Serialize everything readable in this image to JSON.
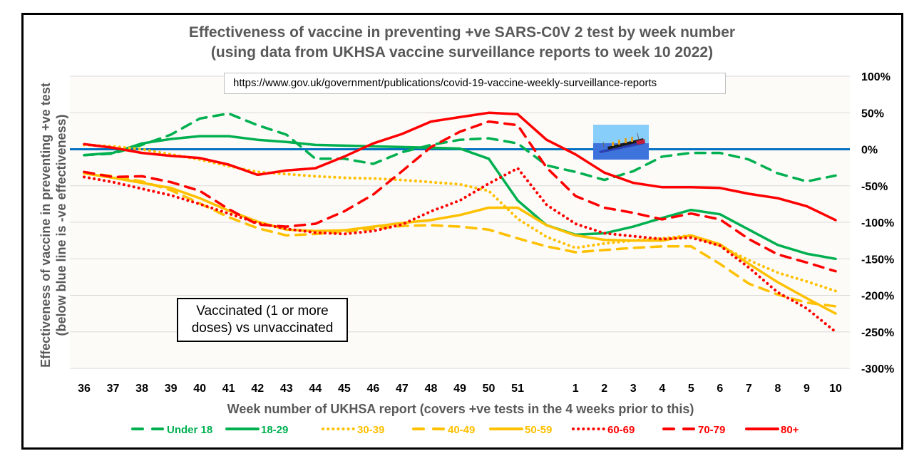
{
  "chart_data": {
    "type": "line",
    "title": "Effectiveness of vaccine in preventing +ve SARS-C0V 2 test by week number",
    "subtitle": "(using data from UKHSA vaccine surveillance reports to week 10 2022)",
    "xlabel": "Week number of UKHSA report (covers +ve tests in the 4 weeks prior to this)",
    "ylabel": "Effectiveness of vaccine in preventing +ve test",
    "ylabel2": "(below blue line is -ve effectiveness)",
    "source_url": "https://www.gov.uk/government/publications/covid-19-vaccine-weekly-surveillance-reports",
    "annotation": "Vaccinated (1 or more doses) vs unvaccinated",
    "annotation_lines": [
      "Vaccinated (1 or more",
      "doses) vs unvaccinated"
    ],
    "categories": [
      "36",
      "37",
      "38",
      "39",
      "40",
      "41",
      "42",
      "43",
      "44",
      "45",
      "46",
      "47",
      "48",
      "49",
      "50",
      "51",
      "",
      "1",
      "2",
      "3",
      "4",
      "5",
      "6",
      "7",
      "8",
      "9",
      "10"
    ],
    "ylim": [
      -300,
      100
    ],
    "yticks": [
      100,
      50,
      0,
      -50,
      -100,
      -150,
      -200,
      -250,
      -300
    ],
    "ytick_labels": [
      "100%",
      "50%",
      "0%",
      "-50%",
      "-100%",
      "-150%",
      "-200%",
      "-250%",
      "-300%"
    ],
    "y_axis_side": "right",
    "grid": true,
    "reference_line": {
      "value": 0,
      "color": "#0070C0"
    },
    "legend_position": "bottom",
    "series": [
      {
        "name": "Under 18",
        "color": "#00B050",
        "style": "dashed",
        "values": [
          -8,
          -6,
          6,
          20,
          42,
          49,
          33,
          20,
          -13,
          -13,
          -20,
          -4,
          6,
          13,
          15,
          8,
          -22,
          -31,
          -42,
          -30,
          -10,
          -5,
          -5,
          -14,
          -33,
          -44,
          -36
        ]
      },
      {
        "name": "18-29",
        "color": "#00B050",
        "style": "solid",
        "values": [
          -8,
          -5,
          8,
          14,
          18,
          18,
          13,
          10,
          6,
          5,
          4,
          3,
          2,
          1,
          -13,
          -70,
          -104,
          -117,
          -115,
          -106,
          -94,
          -83,
          -89,
          -110,
          -131,
          -143,
          -150
        ]
      },
      {
        "name": "30-39",
        "color": "#FFC000",
        "style": "dotted",
        "values": [
          6,
          4,
          0,
          -7,
          -14,
          -23,
          -31,
          -34,
          -37,
          -39,
          -40,
          -42,
          -45,
          -48,
          -57,
          -95,
          -120,
          -135,
          -129,
          -125,
          -122,
          -118,
          -132,
          -152,
          -169,
          -181,
          -194
        ]
      },
      {
        "name": "40-49",
        "color": "#FFC000",
        "style": "dashed",
        "values": [
          -32,
          -37,
          -44,
          -56,
          -74,
          -93,
          -108,
          -118,
          -116,
          -113,
          -109,
          -105,
          -104,
          -106,
          -110,
          -122,
          -133,
          -141,
          -138,
          -135,
          -133,
          -133,
          -157,
          -184,
          -199,
          -210,
          -215
        ]
      },
      {
        "name": "50-59",
        "color": "#FFC000",
        "style": "solid",
        "values": [
          -33,
          -39,
          -46,
          -53,
          -67,
          -84,
          -99,
          -110,
          -112,
          -111,
          -106,
          -101,
          -97,
          -90,
          -80,
          -80,
          -104,
          -118,
          -124,
          -125,
          -125,
          -118,
          -130,
          -157,
          -182,
          -204,
          -225
        ]
      },
      {
        "name": "60-69",
        "color": "#FF0000",
        "style": "dotted",
        "values": [
          -38,
          -45,
          -54,
          -63,
          -75,
          -88,
          -101,
          -109,
          -114,
          -116,
          -112,
          -103,
          -85,
          -70,
          -47,
          -26,
          -76,
          -102,
          -115,
          -119,
          -123,
          -121,
          -132,
          -162,
          -196,
          -218,
          -250
        ]
      },
      {
        "name": "70-79",
        "color": "#FF0000",
        "style": "dashed",
        "values": [
          -31,
          -38,
          -37,
          -45,
          -57,
          -82,
          -103,
          -106,
          -102,
          -85,
          -62,
          -30,
          3,
          24,
          38,
          33,
          -25,
          -64,
          -80,
          -87,
          -96,
          -88,
          -96,
          -123,
          -144,
          -155,
          -167
        ]
      },
      {
        "name": "80+",
        "color": "#FF0000",
        "style": "solid",
        "values": [
          7,
          2,
          -5,
          -9,
          -12,
          -21,
          -35,
          -29,
          -26,
          -10,
          8,
          21,
          38,
          44,
          50,
          48,
          13,
          -7,
          -32,
          -46,
          -52,
          -52,
          -53,
          -61,
          -67,
          -78,
          -97
        ]
      }
    ]
  },
  "image": {
    "icon": "sinking-ship-image"
  }
}
